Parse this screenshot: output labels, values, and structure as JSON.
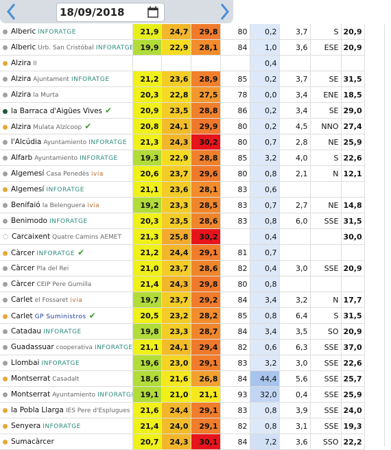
{
  "header": {
    "date": "18/09/2018"
  },
  "table": {
    "rows": [
      {
        "name": "Alberic",
        "sub": null,
        "brand": "INFORATGE",
        "brand_color": "#2a8a7a",
        "check": null,
        "dot": "#a0a0a0",
        "cells": [
          "21,9",
          "24,7",
          "29,8",
          "80",
          "0,2",
          "3,7",
          "S",
          "20,9"
        ],
        "colors": [
          "#e6ee1a",
          "#f2b62a",
          "#f07a2c",
          null,
          "#dde8f8",
          null,
          null,
          null
        ]
      },
      {
        "name": "Alberic",
        "sub": "Urb. San Cristóbal",
        "brand": "INFORATGE",
        "brand_color": "#2a8a7a",
        "check": null,
        "dot": "#a0a0a0",
        "cells": [
          "19,9",
          "22,9",
          "28,1",
          "84",
          "1,0",
          "3,6",
          "ESE",
          "20,9"
        ],
        "colors": [
          "#b2dc3a",
          "#f5dc22",
          "#f28c2c",
          null,
          "#dde8f8",
          null,
          null,
          null
        ]
      },
      {
        "name": "Alzira",
        "sub": "II",
        "brand": null,
        "brand_color": null,
        "check": null,
        "dot": "#e8a830",
        "cells": [
          null,
          null,
          null,
          null,
          "0,4",
          null,
          null,
          null
        ],
        "colors": [
          null,
          null,
          null,
          null,
          "#dde8f8",
          null,
          null,
          null
        ]
      },
      {
        "name": "Alzira",
        "sub": "Ajuntament",
        "brand": "INFORATGE",
        "brand_color": "#2a8a7a",
        "check": null,
        "dot": "#a0a0a0",
        "cells": [
          "21,2",
          "23,6",
          "28,9",
          "85",
          "0,2",
          "3,7",
          "SE",
          "31,5"
        ],
        "colors": [
          "#f0f01a",
          "#f4cc26",
          "#f0802c",
          null,
          "#dde8f8",
          null,
          null,
          null
        ]
      },
      {
        "name": "Alzira",
        "sub": "la Murta",
        "brand": null,
        "brand_color": null,
        "check": null,
        "dot": "#a0a0a0",
        "cells": [
          "20,3",
          "22,8",
          "27,5",
          "78",
          "0,0",
          "3,4",
          "ENE",
          "18,5"
        ],
        "colors": [
          "#f0f01a",
          "#f5dc22",
          "#f2982e",
          null,
          "#dde8f8",
          null,
          null,
          null
        ]
      },
      {
        "name": "la Barraca d'Aigües Vives",
        "sub": null,
        "brand": null,
        "brand_color": null,
        "check": "✔",
        "dot": "#1f5a3a",
        "cells": [
          "20,9",
          "23,5",
          "28,8",
          "86",
          "0,2",
          "3,4",
          "SE",
          "29,0"
        ],
        "colors": [
          "#f0f01a",
          "#f4cc26",
          "#f0802c",
          null,
          "#dde8f8",
          null,
          null,
          null
        ]
      },
      {
        "name": "Alzira",
        "sub": "Mulata Alzicoop",
        "brand": null,
        "brand_color": null,
        "check": "✔",
        "dot": "#e8a830",
        "cells": [
          "20,8",
          "24,1",
          "29,9",
          "80",
          "0,2",
          "4,5",
          "NNO",
          "27,4"
        ],
        "colors": [
          "#f0f01a",
          "#f2bc28",
          "#f0782c",
          null,
          "#dde8f8",
          null,
          null,
          null
        ]
      },
      {
        "name": "l'Alcúdia",
        "sub": "Ayuntamiento",
        "brand": "INFORATGE",
        "brand_color": "#2a8a7a",
        "check": null,
        "dot": "#a0a0a0",
        "cells": [
          "21,3",
          "24,3",
          "30,2",
          "80",
          "0,7",
          "2,8",
          "NE",
          "25,9"
        ],
        "colors": [
          "#f0f01a",
          "#f2b62a",
          "#e8141c",
          null,
          "#dde8f8",
          null,
          null,
          null
        ]
      },
      {
        "name": "Alfarb",
        "sub": "Ayuntamiento",
        "brand": "INFORATGE",
        "brand_color": "#2a8a7a",
        "check": null,
        "dot": "#a0a0a0",
        "cells": [
          "19,3",
          "22,9",
          "28,8",
          "85",
          "3,2",
          "4,0",
          "S",
          "22,6"
        ],
        "colors": [
          "#b2dc3a",
          "#f5dc22",
          "#f0802c",
          null,
          "#dde8f8",
          null,
          null,
          null
        ]
      },
      {
        "name": "Algemesí",
        "sub": "Casa Penedès",
        "brand": "ivia",
        "brand_color": "#b8682a",
        "check": null,
        "dot": "#a0a0a0",
        "cells": [
          "20,6",
          "23,7",
          "29,6",
          "80",
          "0,8",
          "2,1",
          "N",
          "12,1"
        ],
        "colors": [
          "#f0f01a",
          "#f4cc26",
          "#f07a2c",
          null,
          "#dde8f8",
          null,
          null,
          null
        ]
      },
      {
        "name": "Algemesí",
        "sub": null,
        "brand": "INFORATGE",
        "brand_color": "#2a8a7a",
        "check": null,
        "dot": "#e8a830",
        "cells": [
          "21,1",
          "23,6",
          "28,1",
          "83",
          "0,6",
          null,
          null,
          null
        ],
        "colors": [
          "#f0f01a",
          "#f4cc26",
          "#f28c2c",
          null,
          "#dde8f8",
          null,
          null,
          null
        ]
      },
      {
        "name": "Benifaió",
        "sub": "la Belenguera",
        "brand": "ivia",
        "brand_color": "#b8682a",
        "check": null,
        "dot": "#a0a0a0",
        "cells": [
          "19,2",
          "23,3",
          "28,5",
          "83",
          "0,7",
          "2,7",
          "NE",
          "14,8"
        ],
        "colors": [
          "#b2dc3a",
          "#f4cc26",
          "#f0862c",
          null,
          "#dde8f8",
          null,
          null,
          null
        ]
      },
      {
        "name": "Benimodo",
        "sub": null,
        "brand": "INFORATGE",
        "brand_color": "#2a8a7a",
        "check": null,
        "dot": "#a0a0a0",
        "cells": [
          "20,3",
          "23,5",
          "28,6",
          "83",
          "0,8",
          "6,0",
          "SSE",
          "31,5"
        ],
        "colors": [
          "#f0f01a",
          "#f4cc26",
          "#f0862c",
          null,
          "#dde8f8",
          null,
          null,
          null
        ]
      },
      {
        "name": "Carcaixent",
        "sub": "Quatre Camins AEMET",
        "brand": null,
        "brand_color": null,
        "check": null,
        "dot": "#ffffff",
        "cells": [
          "21,3",
          "25,8",
          "30,2",
          null,
          "0,4",
          null,
          null,
          "30,0"
        ],
        "colors": [
          "#f0f01a",
          "#f2aa2c",
          "#e8141c",
          null,
          "#dde8f8",
          null,
          null,
          null
        ]
      },
      {
        "name": "Càrcer",
        "sub": null,
        "brand": "INFORATGE",
        "brand_color": "#2a8a7a",
        "check": "✔",
        "dot": "#e8a830",
        "cells": [
          "21,2",
          "24,4",
          "29,1",
          "81",
          "0,7",
          null,
          null,
          null
        ],
        "colors": [
          "#f0f01a",
          "#f2b62a",
          "#f07c2c",
          null,
          "#dde8f8",
          null,
          null,
          null
        ]
      },
      {
        "name": "Càrcer",
        "sub": "Pla del Rei",
        "brand": null,
        "brand_color": null,
        "check": null,
        "dot": "#a0a0a0",
        "cells": [
          "21,0",
          "23,7",
          "28,6",
          "82",
          "0,4",
          "3,0",
          "SSE",
          "20,9"
        ],
        "colors": [
          "#f0f01a",
          "#f4cc26",
          "#f0862c",
          null,
          "#dde8f8",
          null,
          null,
          null
        ]
      },
      {
        "name": "Càrcer",
        "sub": "CEIP Pere Gumilla",
        "brand": null,
        "brand_color": null,
        "check": null,
        "dot": "#a0a0a0",
        "cells": [
          "21,4",
          "24,3",
          "29,8",
          "80",
          "0,8",
          null,
          null,
          null
        ],
        "colors": [
          "#f0f01a",
          "#f2b62a",
          "#f07a2c",
          null,
          "#dde8f8",
          null,
          null,
          null
        ]
      },
      {
        "name": "Carlet",
        "sub": "el Fossaret",
        "brand": "ivia",
        "brand_color": "#b8682a",
        "check": null,
        "dot": "#a0a0a0",
        "cells": [
          "19,7",
          "23,7",
          "29,2",
          "84",
          "3,4",
          "3,2",
          "N",
          "17,7"
        ],
        "colors": [
          "#b2dc3a",
          "#f4cc26",
          "#f07c2c",
          null,
          "#dde8f8",
          null,
          null,
          null
        ]
      },
      {
        "name": "Carlet",
        "sub": null,
        "brand": "GP Suministros",
        "brand_color": "#1a3a9a",
        "check": "✔",
        "dot": "#e8a830",
        "cells": [
          "20,5",
          "23,2",
          "28,2",
          "85",
          "0,8",
          "6,4",
          "S",
          "31,5"
        ],
        "colors": [
          "#f0f01a",
          "#f4cc26",
          "#f28c2c",
          null,
          "#dde8f8",
          null,
          null,
          null
        ]
      },
      {
        "name": "Catadau",
        "sub": null,
        "brand": "INFORATGE",
        "brand_color": "#2a8a7a",
        "check": null,
        "dot": "#a0a0a0",
        "cells": [
          "19,8",
          "23,3",
          "28,7",
          "84",
          "3,4",
          "3,5",
          "SO",
          "20,9"
        ],
        "colors": [
          "#b2dc3a",
          "#f4cc26",
          "#f0862c",
          null,
          "#dde8f8",
          null,
          null,
          null
        ]
      },
      {
        "name": "Guadassuar",
        "sub": "cooperativa",
        "brand": "INFORATGE",
        "brand_color": "#2a8a7a",
        "check": null,
        "dot": "#a0a0a0",
        "cells": [
          "21,1",
          "24,1",
          "29,4",
          "82",
          "0,6",
          "6,3",
          "SSE",
          "37,0"
        ],
        "colors": [
          "#f0f01a",
          "#f2bc28",
          "#f07a2c",
          null,
          "#dde8f8",
          null,
          null,
          null
        ]
      },
      {
        "name": "Llombai",
        "sub": null,
        "brand": "INFORATGE",
        "brand_color": "#2a8a7a",
        "check": null,
        "dot": "#a0a0a0",
        "cells": [
          "19,6",
          "23,0",
          "29,1",
          "83",
          "3,2",
          "3,0",
          "SSE",
          "22,6"
        ],
        "colors": [
          "#b2dc3a",
          "#f5d424",
          "#f07c2c",
          null,
          "#dde8f8",
          null,
          null,
          null
        ]
      },
      {
        "name": "Montserrat",
        "sub": "Casadalt",
        "brand": null,
        "brand_color": null,
        "check": null,
        "dot": "#e8a830",
        "cells": [
          "18,6",
          "21,6",
          "26,8",
          "84",
          "44,4",
          "5,6",
          "SSE",
          "25,7"
        ],
        "colors": [
          "#b2dc3a",
          "#f5e81e",
          "#f2a030",
          null,
          "#a9c4ec",
          null,
          null,
          null
        ]
      },
      {
        "name": "Montserrat",
        "sub": "Ayuntamiento",
        "brand": "INFORATGE",
        "brand_color": "#2a8a7a",
        "check": null,
        "dot": "#a0a0a0",
        "cells": [
          "19,1",
          "21,0",
          "21,1",
          "93",
          "32,0",
          "0,4",
          "SSE",
          "25,9"
        ],
        "colors": [
          "#b2dc3a",
          "#f0f01a",
          "#f5e81e",
          null,
          "#c2d5f2",
          null,
          null,
          null
        ]
      },
      {
        "name": "la Pobla Llarga",
        "sub": "IES Pere d'Esplugues",
        "brand": null,
        "brand_color": null,
        "check": null,
        "dot": "#e8a830",
        "cells": [
          "21,6",
          "24,4",
          "29,1",
          "83",
          "0,8",
          "3,9",
          "SSE",
          "24,0"
        ],
        "colors": [
          "#f0f01a",
          "#f2b62a",
          "#f07c2c",
          null,
          "#dde8f8",
          null,
          null,
          null
        ]
      },
      {
        "name": "Senyera",
        "sub": null,
        "brand": "INFORATGE",
        "brand_color": "#2a8a7a",
        "check": null,
        "dot": "#e8a830",
        "cells": [
          "21,4",
          "24,0",
          "29,1",
          "82",
          "0,8",
          "3,1",
          "SSE",
          "19,3"
        ],
        "colors": [
          "#f0f01a",
          "#f2bc28",
          "#f07c2c",
          null,
          "#dde8f8",
          null,
          null,
          null
        ]
      },
      {
        "name": "Sumacàrcer",
        "sub": null,
        "brand": null,
        "brand_color": null,
        "check": null,
        "dot": "#e8a830",
        "cells": [
          "20,7",
          "24,3",
          "30,1",
          "84",
          "7,2",
          "3,6",
          "SSO",
          "22,2"
        ],
        "colors": [
          "#f0f01a",
          "#f2b62a",
          "#e8141c",
          null,
          "#d2e0f6",
          null,
          null,
          null
        ]
      }
    ]
  }
}
